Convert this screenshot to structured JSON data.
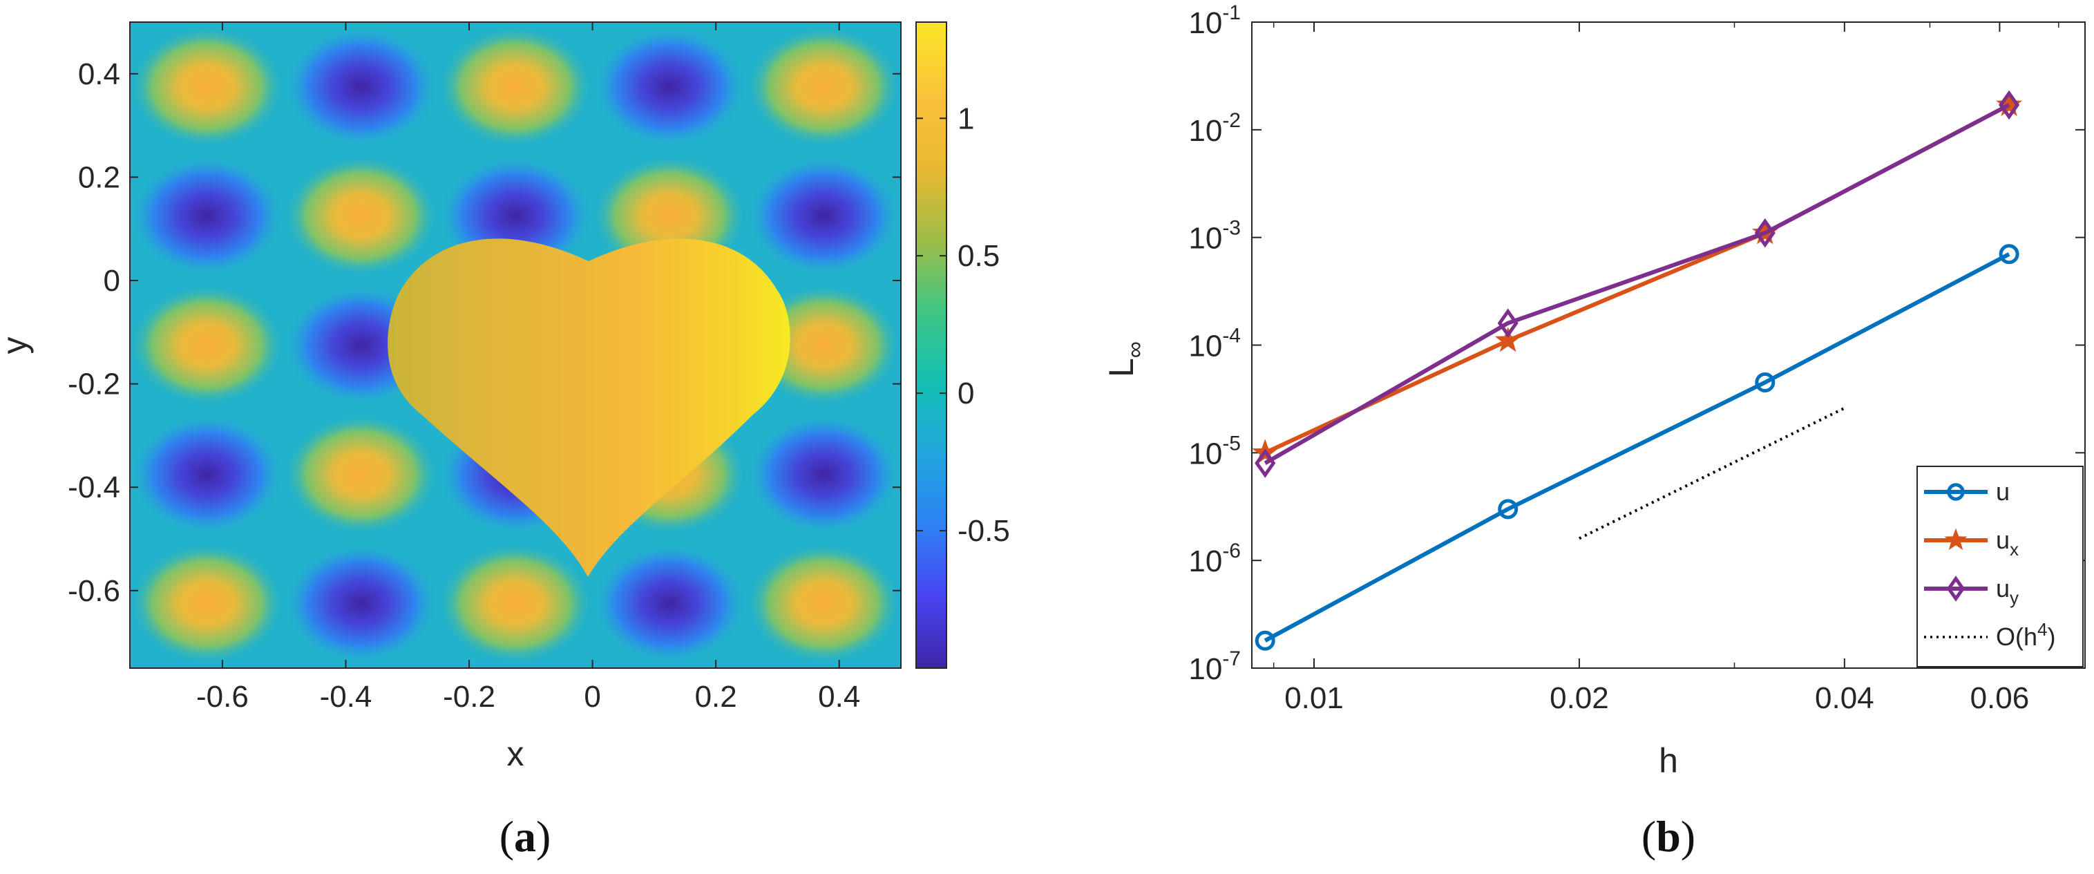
{
  "colors": {
    "axis": "#262626",
    "u": "#0072BD",
    "ux": "#D95319",
    "uy": "#7E2F8E",
    "ref": "#000000",
    "colormap": [
      "#3e26a8",
      "#4743f0",
      "#2f80f5",
      "#21a5de",
      "#14bfb5",
      "#3ec685",
      "#9cbd49",
      "#e8b831",
      "#fbc03c",
      "#f9e625"
    ]
  },
  "captions": {
    "a_open": "(",
    "a_letter": "a",
    "a_close": ")",
    "b_open": "(",
    "b_letter": "b",
    "b_close": ")"
  },
  "chart_data": [
    {
      "type": "heatmap",
      "panel": "a",
      "title": "",
      "xlabel": "x",
      "ylabel": "y",
      "xlim": [
        -0.75,
        0.5
      ],
      "ylim": [
        -0.75,
        0.5
      ],
      "xticks": [
        -0.6,
        -0.4,
        -0.2,
        0,
        0.2,
        0.4
      ],
      "xtick_labels": [
        "-0.6",
        "-0.4",
        "-0.2",
        "0",
        "0.2",
        "0.4"
      ],
      "yticks": [
        -0.6,
        -0.4,
        -0.2,
        0,
        0.2,
        0.4
      ],
      "ytick_labels": [
        "-0.6",
        "-0.4",
        "-0.2",
        "0",
        "0.2",
        "0.4"
      ],
      "field": "checkerboard pattern outside a heart-shaped region; heart interior ranges ~0.9 to ~1.3",
      "colorbar": {
        "limits": [
          -1.0,
          1.35
        ],
        "ticks": [
          -0.5,
          0,
          0.5,
          1
        ],
        "tick_labels": [
          "-0.5",
          "0",
          "0.5",
          "1"
        ]
      }
    },
    {
      "type": "line",
      "panel": "b",
      "title": "",
      "xlabel": "h",
      "ylabel": "L",
      "ylabel_sub": "∞",
      "xscale": "log",
      "yscale": "log",
      "xlim": [
        0.0085,
        0.075
      ],
      "ylim": [
        1e-07,
        0.1
      ],
      "xticks": [
        0.01,
        0.02,
        0.04,
        0.06
      ],
      "xtick_labels": [
        "0.01",
        "0.02",
        "0.04",
        "0.06"
      ],
      "yticks": [
        {
          "value": 1e-07,
          "base": "10",
          "exp": "-7"
        },
        {
          "value": 1e-06,
          "base": "10",
          "exp": "-6"
        },
        {
          "value": 1e-05,
          "base": "10",
          "exp": "-5"
        },
        {
          "value": 0.0001,
          "base": "10",
          "exp": "-4"
        },
        {
          "value": 0.001,
          "base": "10",
          "exp": "-3"
        },
        {
          "value": 0.01,
          "base": "10",
          "exp": "-2"
        },
        {
          "value": 0.1,
          "base": "10",
          "exp": "-1"
        }
      ],
      "x": [
        0.0088,
        0.0166,
        0.0325,
        0.0615
      ],
      "series": [
        {
          "name": "u",
          "values": [
            1.8e-07,
            3e-06,
            4.5e-05,
            0.0007
          ],
          "marker": "circle"
        },
        {
          "name": "u",
          "sub": "x",
          "values": [
            1e-05,
            0.00011,
            0.0011,
            0.017
          ],
          "marker": "star"
        },
        {
          "name": "u",
          "sub": "y",
          "values": [
            8e-06,
            0.00016,
            0.0011,
            0.017
          ],
          "marker": "diamond"
        }
      ],
      "reference": {
        "name": "O(h",
        "sup": "4",
        "close": ")",
        "x": [
          0.02,
          0.04
        ],
        "y": [
          1.6e-06,
          2.6e-05
        ],
        "style": "dotted"
      },
      "legend": "bottom-right"
    }
  ]
}
